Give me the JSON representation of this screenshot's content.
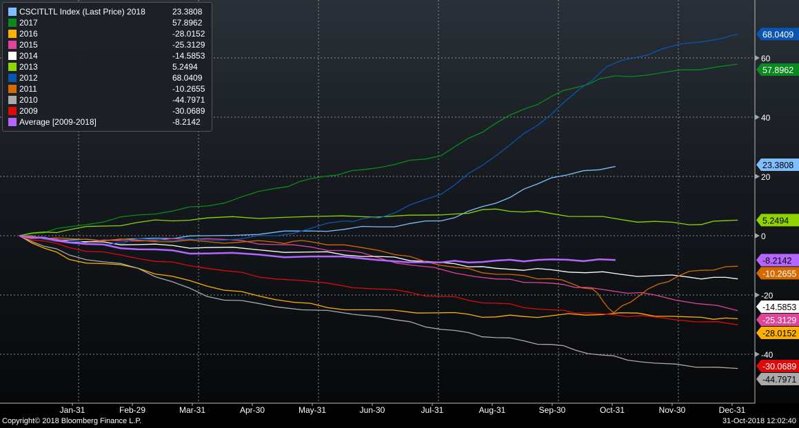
{
  "chart_data": {
    "type": "line",
    "title": "CSCITLTL Index (Last Price)",
    "xlabel": "",
    "ylabel": "",
    "ylim": [
      -51,
      78
    ],
    "xlim": [
      0,
      12.3
    ],
    "y_ticks": [
      60,
      40,
      20,
      0,
      -20,
      -40
    ],
    "x_tick_labels": [
      "Jan-31",
      "Feb-29",
      "Mar-31",
      "Apr-30",
      "May-31",
      "Jun-30",
      "Jul-31",
      "Aug-31",
      "Sep-30",
      "Oct-31",
      "Nov-30",
      "Dec-31"
    ],
    "grid": true,
    "legend_position": "top-left",
    "series": [
      {
        "name": "CSCITLTL Index (Last Price) 2018",
        "last": "23.3808",
        "color": "#7fbfff",
        "text": "#000",
        "x": [
          0,
          0.83,
          1.98,
          3.13,
          4.85,
          6,
          7.03,
          7.95,
          8.87,
          9.94
        ],
        "y": [
          0,
          -1.5,
          -1,
          0,
          1.6,
          3,
          5,
          11,
          19.5,
          23.38
        ]
      },
      {
        "name": "2017",
        "last": "57.8962",
        "color": "#0a8a1e",
        "text": "#fff",
        "x": [
          0,
          0.83,
          1.98,
          3.13,
          4.28,
          5.08,
          6,
          7.03,
          7.95,
          8.87,
          9.68,
          10.71,
          11.98
        ],
        "y": [
          0,
          3,
          7,
          10,
          16,
          20,
          23,
          27,
          38,
          47,
          53,
          55,
          57.9
        ]
      },
      {
        "name": "2016",
        "last": "-28.0152",
        "color": "#ffb000",
        "text": "#000",
        "x": [
          0,
          0.83,
          1.98,
          3.13,
          4.28,
          5.43,
          7.03,
          7.95,
          8.87,
          10.02,
          11.17,
          11.98
        ],
        "y": [
          0,
          -8,
          -11,
          -17,
          -21.6,
          -25,
          -26,
          -27.4,
          -27,
          -26,
          -27.4,
          -28.02
        ]
      },
      {
        "name": "2015",
        "last": "-25.3129",
        "color": "#e0459a",
        "text": "#fff",
        "x": [
          0,
          0.83,
          1.98,
          3.13,
          4.28,
          5.43,
          6.57,
          7.95,
          8.87,
          9.68,
          10.6,
          11.98
        ],
        "y": [
          0,
          -2,
          -1.8,
          -1,
          -3,
          -5,
          -10,
          -14.6,
          -16,
          -18,
          -20,
          -25.31
        ]
      },
      {
        "name": "2014",
        "last": "-14.5853",
        "color": "#ffffff",
        "text": "#000",
        "x": [
          0,
          0.83,
          1.98,
          3.13,
          4.85,
          6,
          7.03,
          7.95,
          8.87,
          10.02,
          11.17,
          11.98
        ],
        "y": [
          0,
          -2,
          -3,
          -4,
          -5.5,
          -7,
          -9,
          -11,
          -11.5,
          -13,
          -14,
          -14.59
        ]
      },
      {
        "name": "2013",
        "last": "5.2494",
        "color": "#8fd400",
        "text": "#000",
        "x": [
          0,
          0.83,
          1.98,
          3.13,
          4.85,
          7.03,
          7.95,
          8.87,
          10.02,
          11.17,
          11.98
        ],
        "y": [
          0,
          2,
          4.5,
          6,
          6.5,
          7,
          9,
          7.5,
          5.5,
          3.7,
          5.25
        ]
      },
      {
        "name": "2012",
        "last": "68.0409",
        "color": "#0a55b0",
        "text": "#fff",
        "x": [
          0,
          0.83,
          1.5,
          1.98,
          3.13,
          4.28,
          5.43,
          6,
          7.03,
          7.95,
          8.87,
          9.79,
          10.71,
          11.98
        ],
        "y": [
          0,
          -2,
          -3,
          -1,
          -1.5,
          0,
          5,
          6,
          14,
          27,
          41,
          57,
          63,
          68.04
        ]
      },
      {
        "name": "2011",
        "last": "-10.2655",
        "color": "#d46a00",
        "text": "#fff",
        "x": [
          0,
          0.83,
          1.98,
          3.13,
          4.28,
          4.85,
          6,
          7.03,
          7.95,
          8.87,
          9.56,
          9.91,
          10.48,
          11.17,
          11.98
        ],
        "y": [
          0,
          -1,
          -1.5,
          -2,
          -2.2,
          -2,
          -5,
          -10,
          -13,
          -14.5,
          -18,
          -26,
          -18,
          -12,
          -10.27
        ]
      },
      {
        "name": "2010",
        "last": "-44.7971",
        "color": "#aaaaaa",
        "text": "#000",
        "x": [
          0,
          0.83,
          1.98,
          3.13,
          4.28,
          6,
          7.03,
          7.95,
          8.87,
          9.68,
          10.6,
          11.98
        ],
        "y": [
          0,
          -6.5,
          -11,
          -20.5,
          -24,
          -27.4,
          -31.6,
          -34.4,
          -36.7,
          -40.2,
          -43,
          -44.8
        ]
      },
      {
        "name": "2009",
        "last": "-30.0689",
        "color": "#dd0a0a",
        "text": "#fff",
        "x": [
          0,
          0.83,
          1.98,
          3.13,
          4.28,
          6,
          7.03,
          7.95,
          8.87,
          9.68,
          10.6,
          11.98
        ],
        "y": [
          0,
          -4,
          -7.7,
          -11,
          -14.6,
          -18,
          -20.5,
          -22.8,
          -25,
          -26.3,
          -27.4,
          -30.07
        ]
      },
      {
        "name": "Average [2009-2018]",
        "last": "-8.2142",
        "color": "#b566ff",
        "text": "#000",
        "x": [
          0,
          0.83,
          1.98,
          3.13,
          4.85,
          7.03,
          7.95,
          8.87,
          9.94
        ],
        "y": [
          0,
          -2.3,
          -4.6,
          -6,
          -7,
          -9,
          -8.4,
          -8,
          -8.21
        ]
      }
    ]
  },
  "footer": {
    "copyright": "Copyright© 2018 Bloomberg Finance L.P.",
    "timestamp": "31-Oct-2018 12:02:40"
  }
}
